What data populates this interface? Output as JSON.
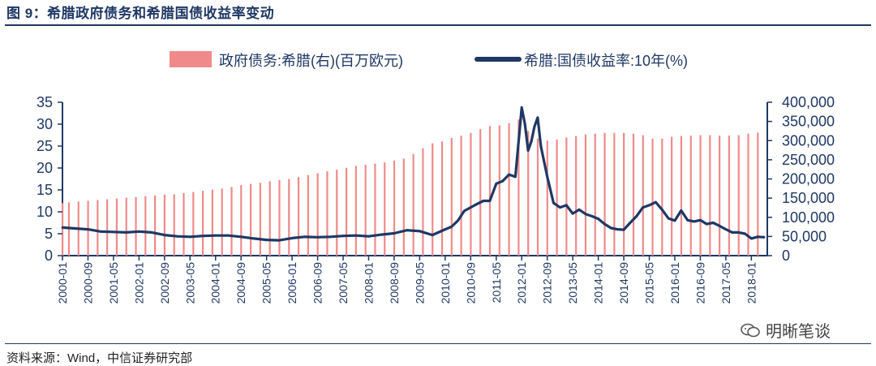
{
  "header": {
    "title": "图 9：希腊政府债务和希腊国债收益率变动"
  },
  "footer": {
    "source": "资料来源：Wind，中信证券研究部",
    "watermark": "明晰笔谈"
  },
  "colors": {
    "bar": "#f08a8a",
    "line": "#1f3864",
    "text": "#1f3864"
  },
  "chart_data": {
    "type": "bar+line",
    "legend_placement": "top",
    "grid": false,
    "x_tick_labels": [
      "2000-01",
      "2000-09",
      "2001-05",
      "2002-01",
      "2002-09",
      "2003-05",
      "2004-01",
      "2004-09",
      "2005-05",
      "2006-01",
      "2006-09",
      "2007-05",
      "2008-01",
      "2008-09",
      "2009-05",
      "2010-01",
      "2010-09",
      "2011-05",
      "2012-01",
      "2012-09",
      "2013-05",
      "2014-01",
      "2014-09",
      "2015-05",
      "2016-01",
      "2016-09",
      "2017-05",
      "2018-01"
    ],
    "y_left": {
      "ticks": [
        "0",
        "5",
        "10",
        "15",
        "20",
        "25",
        "30",
        "35"
      ],
      "ylim": [
        0,
        35
      ]
    },
    "y_right": {
      "ticks": [
        "0",
        "50,000",
        "100,000",
        "150,000",
        "200,000",
        "250,000",
        "300,000",
        "350,000",
        "400,000"
      ],
      "ylim": [
        0,
        400000
      ]
    },
    "series": [
      {
        "name": "政府债务:希腊(右)(百万欧元)",
        "type": "bar",
        "axis": "right",
        "x": [
          "2000-01",
          "2000-03",
          "2000-06",
          "2000-09",
          "2000-12",
          "2001-03",
          "2001-06",
          "2001-09",
          "2001-12",
          "2002-03",
          "2002-06",
          "2002-09",
          "2002-12",
          "2003-03",
          "2003-06",
          "2003-09",
          "2003-12",
          "2004-03",
          "2004-06",
          "2004-09",
          "2004-12",
          "2005-03",
          "2005-06",
          "2005-09",
          "2005-12",
          "2006-03",
          "2006-06",
          "2006-09",
          "2006-12",
          "2007-03",
          "2007-06",
          "2007-09",
          "2007-12",
          "2008-03",
          "2008-06",
          "2008-09",
          "2008-12",
          "2009-03",
          "2009-06",
          "2009-09",
          "2009-12",
          "2010-03",
          "2010-06",
          "2010-09",
          "2010-12",
          "2011-03",
          "2011-06",
          "2011-09",
          "2011-12",
          "2012-03",
          "2012-06",
          "2012-09",
          "2012-12",
          "2013-03",
          "2013-06",
          "2013-09",
          "2013-12",
          "2014-03",
          "2014-06",
          "2014-09",
          "2014-12",
          "2015-03",
          "2015-06",
          "2015-09",
          "2015-12",
          "2016-03",
          "2016-06",
          "2016-09",
          "2016-12",
          "2017-03",
          "2017-06",
          "2017-09",
          "2017-12",
          "2018-03"
        ],
        "values": [
          137000,
          139000,
          141000,
          143000,
          145000,
          147000,
          149000,
          151000,
          153000,
          155000,
          157000,
          159000,
          160000,
          163000,
          166000,
          169000,
          172000,
          175000,
          179000,
          184000,
          187000,
          190000,
          194000,
          197000,
          200000,
          205000,
          210000,
          215000,
          220000,
          224000,
          229000,
          234000,
          237000,
          240000,
          243000,
          248000,
          253000,
          265000,
          280000,
          293000,
          298000,
          307000,
          313000,
          320000,
          330000,
          338000,
          340000,
          345000,
          355000,
          325000,
          305000,
          300000,
          303000,
          308000,
          312000,
          316000,
          318000,
          320000,
          320000,
          320000,
          318000,
          314000,
          305000,
          305000,
          310000,
          312000,
          313000,
          314000,
          314000,
          313000,
          313000,
          314000,
          318000,
          321000
        ]
      },
      {
        "name": "希腊:国债收益率:10年(%)",
        "type": "line",
        "axis": "left",
        "x": [
          "2000-01",
          "2000-05",
          "2000-09",
          "2001-01",
          "2001-05",
          "2001-09",
          "2002-01",
          "2002-05",
          "2002-09",
          "2003-01",
          "2003-05",
          "2003-09",
          "2004-01",
          "2004-05",
          "2004-09",
          "2005-01",
          "2005-05",
          "2005-09",
          "2006-01",
          "2006-05",
          "2006-09",
          "2007-01",
          "2007-05",
          "2007-09",
          "2008-01",
          "2008-05",
          "2008-09",
          "2009-01",
          "2009-05",
          "2009-09",
          "2010-01",
          "2010-03",
          "2010-05",
          "2010-07",
          "2010-09",
          "2010-11",
          "2011-01",
          "2011-03",
          "2011-05",
          "2011-07",
          "2011-09",
          "2011-11",
          "2012-01",
          "2012-02",
          "2012-03",
          "2012-04",
          "2012-05",
          "2012-06",
          "2012-07",
          "2012-09",
          "2012-11",
          "2013-01",
          "2013-03",
          "2013-05",
          "2013-07",
          "2013-09",
          "2013-11",
          "2014-01",
          "2014-03",
          "2014-05",
          "2014-07",
          "2014-09",
          "2014-11",
          "2015-01",
          "2015-03",
          "2015-05",
          "2015-07",
          "2015-09",
          "2015-11",
          "2016-01",
          "2016-03",
          "2016-05",
          "2016-07",
          "2016-09",
          "2016-11",
          "2017-01",
          "2017-03",
          "2017-05",
          "2017-07",
          "2017-09",
          "2017-11",
          "2018-01",
          "2018-03",
          "2018-05"
        ],
        "values": [
          6.4,
          6.2,
          6.0,
          5.5,
          5.4,
          5.3,
          5.5,
          5.3,
          4.7,
          4.4,
          4.3,
          4.5,
          4.6,
          4.6,
          4.3,
          3.9,
          3.6,
          3.5,
          4.0,
          4.3,
          4.2,
          4.3,
          4.5,
          4.6,
          4.4,
          4.8,
          5.1,
          5.8,
          5.6,
          4.7,
          6.0,
          6.6,
          8.0,
          10.2,
          11.0,
          11.8,
          12.5,
          12.5,
          16.4,
          17.0,
          18.5,
          18.0,
          33.8,
          30.0,
          24.0,
          26.0,
          29.5,
          31.5,
          25.0,
          18.0,
          12.0,
          11.0,
          11.5,
          9.6,
          10.5,
          9.5,
          9.0,
          8.4,
          7.2,
          6.3,
          6.0,
          5.9,
          7.5,
          9.0,
          11.0,
          11.5,
          12.2,
          10.5,
          8.5,
          8.0,
          10.3,
          8.1,
          7.8,
          8.1,
          7.2,
          7.5,
          6.8,
          6.0,
          5.3,
          5.3,
          5.0,
          3.9,
          4.3,
          4.2
        ]
      }
    ]
  }
}
